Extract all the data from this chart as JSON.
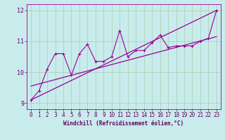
{
  "xlabel": "Windchill (Refroidissement éolien,°C)",
  "background_color": "#c8ecec",
  "line_color": "#990099",
  "grid_color": "#aaccaa",
  "text_color": "#660066",
  "x_data": [
    0,
    1,
    2,
    3,
    4,
    5,
    6,
    7,
    8,
    9,
    10,
    11,
    12,
    13,
    14,
    15,
    16,
    17,
    18,
    19,
    20,
    21,
    22,
    23
  ],
  "y_data": [
    9.1,
    9.4,
    10.1,
    10.6,
    10.6,
    9.9,
    10.6,
    10.9,
    10.35,
    10.35,
    10.5,
    11.35,
    10.5,
    10.7,
    10.7,
    10.95,
    11.2,
    10.8,
    10.85,
    10.85,
    10.85,
    11.0,
    11.1,
    12.0
  ],
  "trend1_start": 9.1,
  "trend1_end": 12.0,
  "trend2_start": 9.55,
  "trend2_end": 11.15,
  "ylim": [
    8.8,
    12.2
  ],
  "xlim": [
    -0.5,
    23.5
  ],
  "yticks": [
    9,
    10,
    11,
    12
  ],
  "xticks": [
    0,
    1,
    2,
    3,
    4,
    5,
    6,
    7,
    8,
    9,
    10,
    11,
    12,
    13,
    14,
    15,
    16,
    17,
    18,
    19,
    20,
    21,
    22,
    23
  ],
  "tick_fontsize": 5.5,
  "xlabel_fontsize": 5.5
}
